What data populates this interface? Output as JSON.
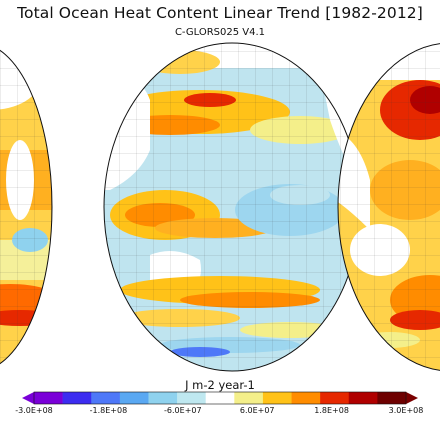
{
  "title": "Total Ocean Heat Content Linear Trend [1982-2012]",
  "subtitle": "C-GLORS025 V4.1",
  "colorbar": {
    "unit_label": "J m-2 year-1",
    "ticks": [
      "-3.0E+08",
      "-1.8E+08",
      "-6.0E+07",
      "6.0E+07",
      "1.8E+08",
      "3.0E+08"
    ],
    "colors": [
      "#7a00d8",
      "#3c2cf0",
      "#4e78f8",
      "#5aa8f2",
      "#8fd2ee",
      "#bfe8f0",
      "#ffffff",
      "#f4ef8a",
      "#ffc218",
      "#ff8c00",
      "#e62800",
      "#b00000",
      "#6e0000"
    ],
    "under_color": "#7a00d8",
    "over_color": "#7a0000"
  },
  "map": {
    "projection": "interrupted globe lobes",
    "ocean_base_color": "#bfe4ef",
    "land_color": "#ffffff",
    "graticule": true
  }
}
